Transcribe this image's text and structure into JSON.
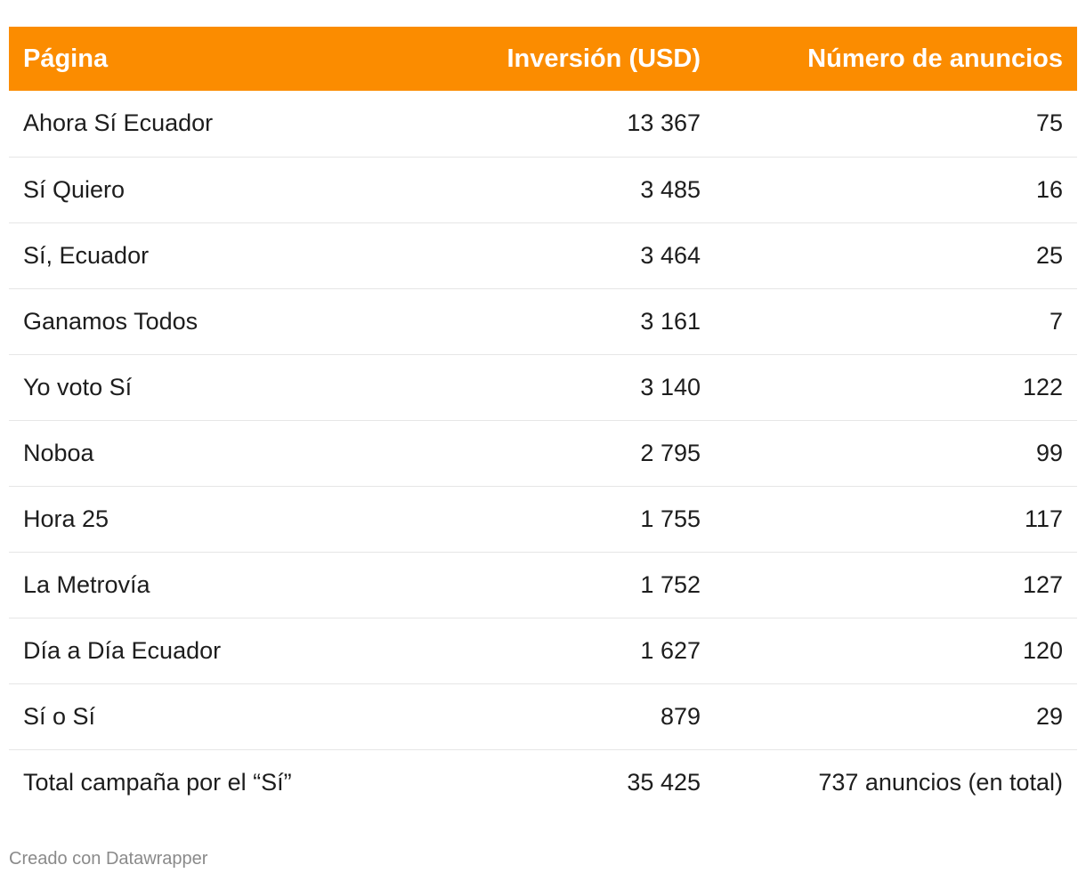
{
  "chart_data": {
    "type": "table",
    "columns": [
      "Página",
      "Inversión (USD)",
      "Número de anuncios"
    ],
    "rows": [
      {
        "pagina": "Ahora Sí Ecuador",
        "inversion": "13 367",
        "anuncios": "75"
      },
      {
        "pagina": "Sí Quiero",
        "inversion": "3 485",
        "anuncios": "16"
      },
      {
        "pagina": "Sí, Ecuador",
        "inversion": "3 464",
        "anuncios": "25"
      },
      {
        "pagina": "Ganamos Todos",
        "inversion": "3 161",
        "anuncios": "7"
      },
      {
        "pagina": "Yo voto Sí",
        "inversion": "3 140",
        "anuncios": "122"
      },
      {
        "pagina": "Noboa",
        "inversion": "2 795",
        "anuncios": "99"
      },
      {
        "pagina": "Hora 25",
        "inversion": "1 755",
        "anuncios": "117"
      },
      {
        "pagina": "La Metrovía",
        "inversion": "1 752",
        "anuncios": "127"
      },
      {
        "pagina": "Día a Día Ecuador",
        "inversion": "1 627",
        "anuncios": "120"
      },
      {
        "pagina": "Sí o Sí",
        "inversion": "879",
        "anuncios": "29"
      },
      {
        "pagina": "Total campaña por el “Sí”",
        "inversion": "35 425",
        "anuncios": "737 anuncios (en total)"
      }
    ]
  },
  "footer": {
    "credit": "Creado con Datawrapper"
  },
  "colors": {
    "header_background": "#fb8c00",
    "header_text": "#ffffff",
    "row_divider": "#e6e6e6",
    "footer_text": "#8a8a8a"
  }
}
